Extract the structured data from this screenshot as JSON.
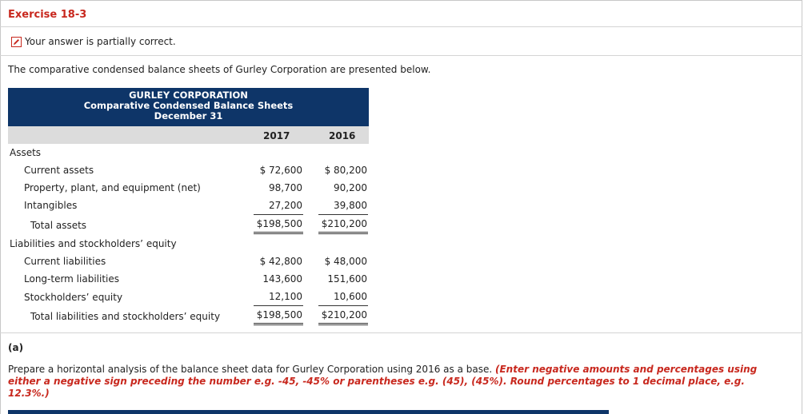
{
  "exercise_title": "Exercise 18-3",
  "status_text": "Your answer is partially correct.",
  "intro_text": "The comparative condensed balance sheets of Gurley Corporation are presented below.",
  "table": {
    "company": "GURLEY CORPORATION",
    "statement": "Comparative Condensed Balance Sheets",
    "date": "December 31",
    "year1": "2017",
    "year2": "2016",
    "assets_heading": "Assets",
    "assets": [
      {
        "label": "Current assets",
        "v2017": "$ 72,600",
        "v2016": "$ 80,200"
      },
      {
        "label": "Property, plant, and equipment (net)",
        "v2017": "98,700",
        "v2016": "90,200"
      },
      {
        "label": "Intangibles",
        "v2017": "27,200",
        "v2016": "39,800"
      }
    ],
    "total_assets": {
      "label": "Total assets",
      "v2017": "$198,500",
      "v2016": "$210,200"
    },
    "liab_heading": "Liabilities and stockholders’ equity",
    "liabilities": [
      {
        "label": "Current liabilities",
        "v2017": "$ 42,800",
        "v2016": "$ 48,000"
      },
      {
        "label": "Long-term liabilities",
        "v2017": "143,600",
        "v2016": "151,600"
      },
      {
        "label": "Stockholders’ equity",
        "v2017": "12,100",
        "v2016": "10,600"
      }
    ],
    "total_liab": {
      "label": "Total liabilities and stockholders’ equity",
      "v2017": "$198,500",
      "v2016": "$210,200"
    }
  },
  "part_a_label": "(a)",
  "instruction_plain": "Prepare a horizontal analysis of the balance sheet data for Gurley Corporation using 2016 as a base.",
  "instruction_red": "(Enter negative amounts and percentages using either a negative sign preceding the number e.g. -45, -45% or parentheses e.g. (45), (45%). Round percentages to 1 decimal place, e.g. 12.3%.)",
  "colors": {
    "accent_red": "#c8281e",
    "header_navy": "#0e3568"
  }
}
